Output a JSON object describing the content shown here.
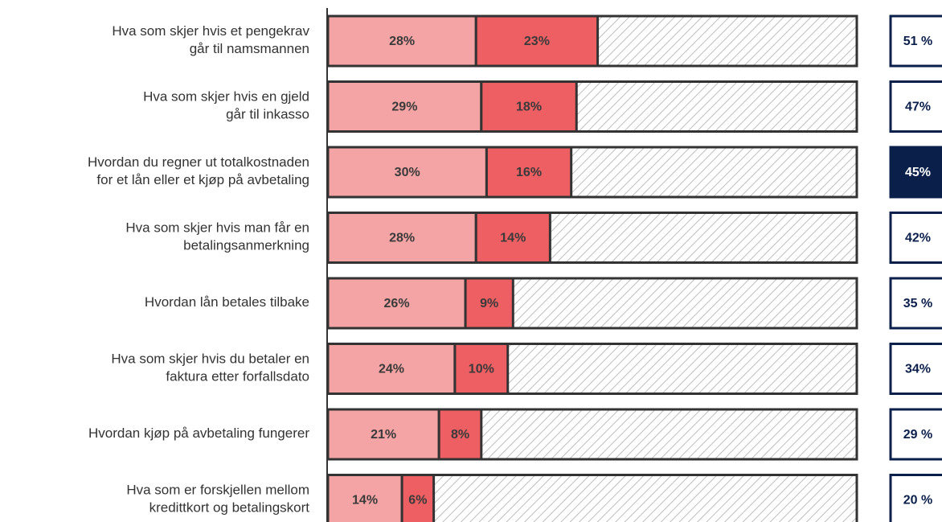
{
  "chart_data": {
    "type": "stacked_bar_horizontal",
    "categories": [
      [
        "Hva som skjer hvis et pengekrav",
        "går til namsmannen"
      ],
      [
        "Hva som skjer hvis en gjeld",
        "går til inkasso"
      ],
      [
        "Hvordan du regner ut totalkostnaden",
        "for et lån eller et kjøp på avbetaling"
      ],
      [
        "Hva som skjer hvis man får en",
        "betalingsanmerkning"
      ],
      [
        "Hvordan lån betales tilbake"
      ],
      [
        "Hva som skjer hvis du betaler en",
        "faktura etter forfallsdato"
      ],
      [
        "Hvordan kjøp på avbetaling fungerer"
      ],
      [
        "Hva som er forskjellen mellom",
        "kredittkort og betalingskort"
      ]
    ],
    "series": [
      {
        "color": "#f4a4a4",
        "values": [
          28,
          29,
          30,
          28,
          26,
          24,
          21,
          14
        ],
        "value_labels": [
          "28%",
          "29%",
          "30%",
          "28%",
          "26%",
          "24%",
          "21%",
          "14%"
        ]
      },
      {
        "color": "#ee5f63",
        "values": [
          23,
          18,
          16,
          14,
          9,
          10,
          8,
          6
        ],
        "value_labels": [
          "23%",
          "18%",
          "16%",
          "14%",
          "9%",
          "10%",
          "8%",
          "6%"
        ]
      }
    ],
    "totals": [
      51,
      47,
      45,
      42,
      35,
      34,
      29,
      20
    ],
    "total_labels": [
      "51 %",
      "47%",
      "45%",
      "42%",
      "35 %",
      "34%",
      "29 %",
      "20 %"
    ],
    "highlight": 2,
    "total_color": "#0b1f4b",
    "xlim": [
      0,
      100
    ]
  }
}
